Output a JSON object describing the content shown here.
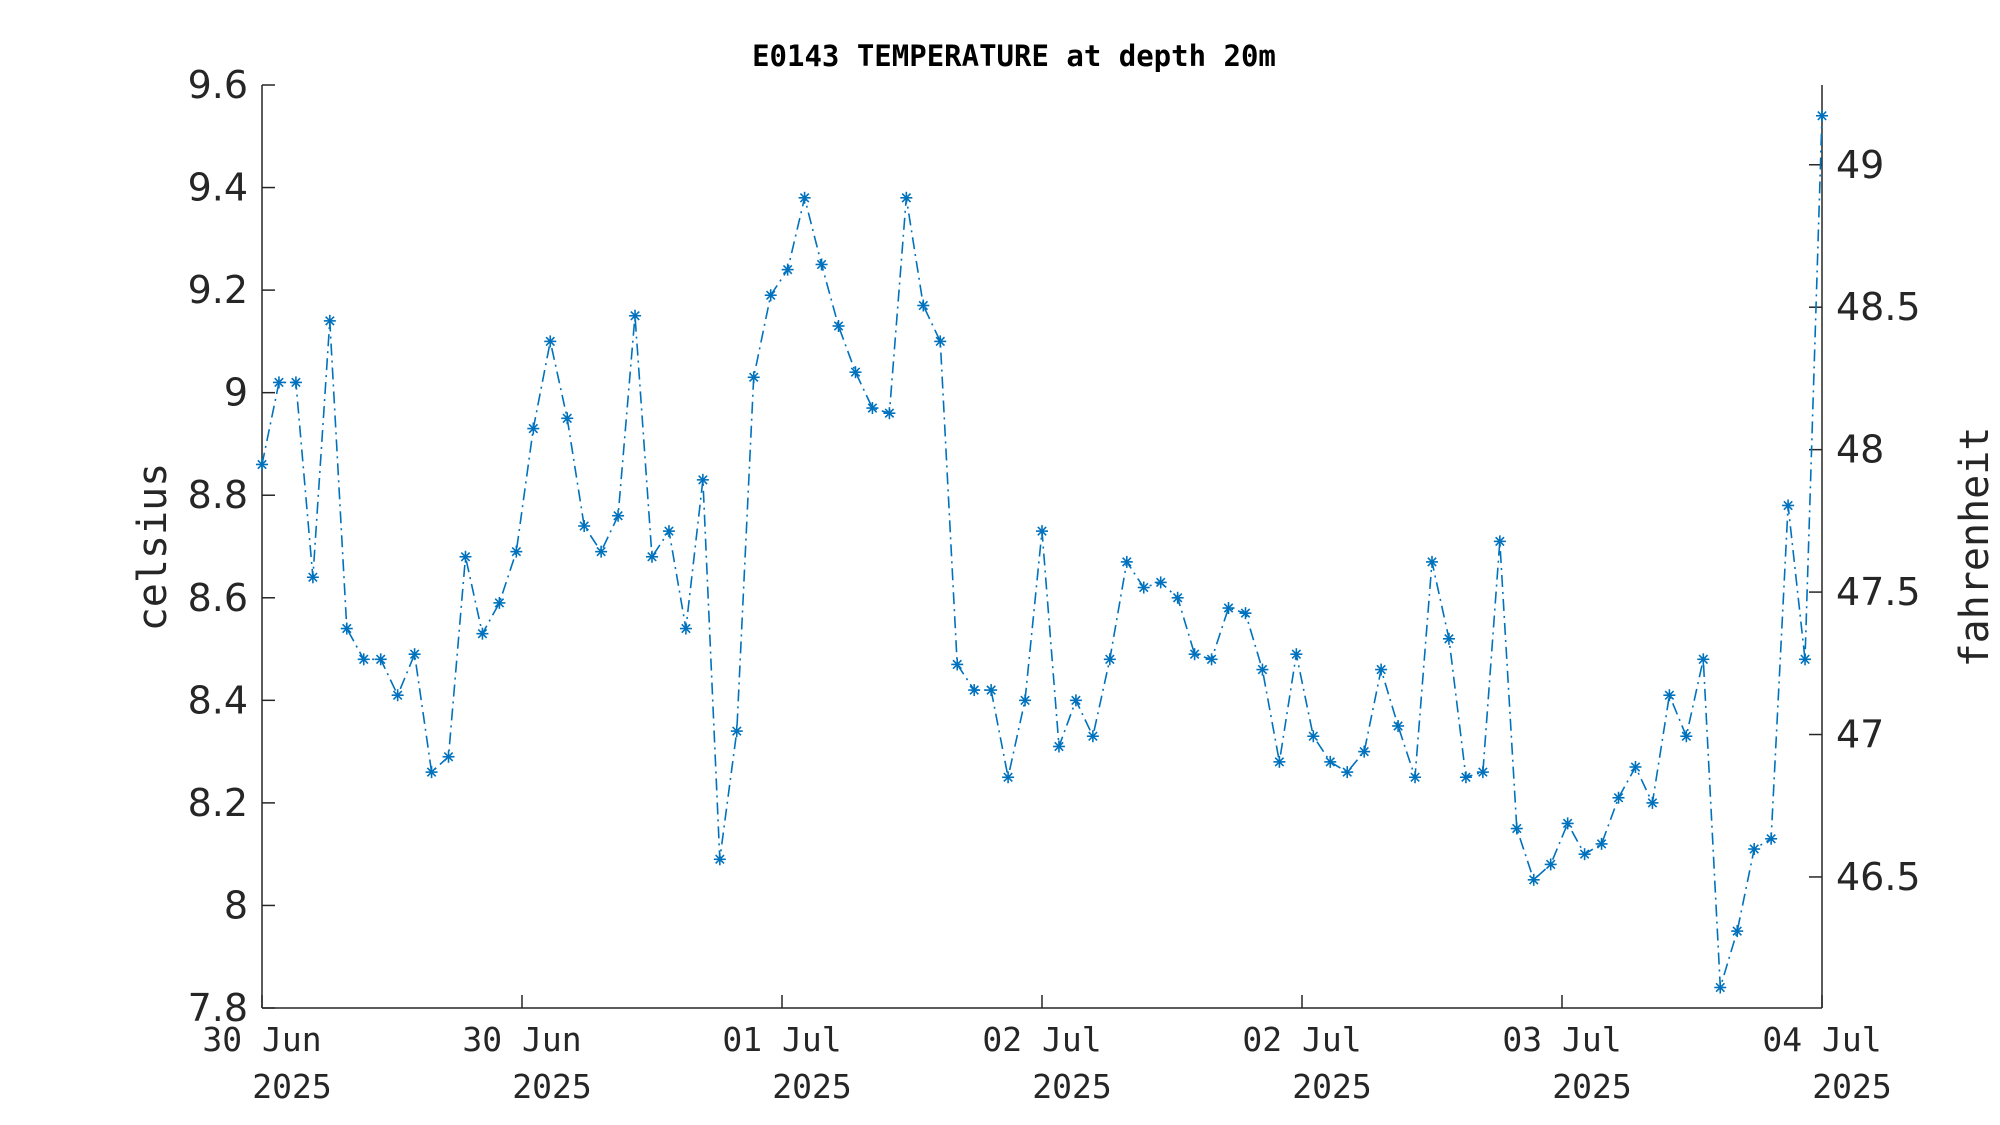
{
  "chart_data": {
    "type": "line",
    "title": "E0143 TEMPERATURE at depth 20m",
    "ylabel": "celsius",
    "y2label": "fahrenheit",
    "ylim": [
      7.8,
      9.6
    ],
    "yticks": [
      "7.8",
      "8",
      "8.2",
      "8.4",
      "8.6",
      "8.8",
      "9",
      "9.2",
      "9.4",
      "9.6"
    ],
    "y2lim": [
      46.04,
      49.28
    ],
    "y2ticks": [
      "46.5",
      "47",
      "47.5",
      "48",
      "48.5",
      "49"
    ],
    "xticks": [
      {
        "day": "30 Jun",
        "year": "2025"
      },
      {
        "day": "30 Jun",
        "year": "2025"
      },
      {
        "day": "01 Jul",
        "year": "2025"
      },
      {
        "day": "02 Jul",
        "year": "2025"
      },
      {
        "day": "02 Jul",
        "year": "2025"
      },
      {
        "day": "03 Jul",
        "year": "2025"
      },
      {
        "day": "04 Jul",
        "year": "2025"
      }
    ],
    "grid": false,
    "color": "#0072BD",
    "line_style": "dash-dot",
    "marker": "asterisk",
    "series": [
      {
        "values": [
          8.86,
          9.02,
          9.02,
          8.64,
          9.14,
          8.54,
          8.48,
          8.48,
          8.41,
          8.49,
          8.26,
          8.29,
          8.68,
          8.53,
          8.59,
          8.69,
          8.93,
          9.1,
          8.95,
          8.74,
          8.69,
          8.76,
          9.15,
          8.68,
          8.73,
          8.54,
          8.83,
          8.09,
          8.34,
          9.03,
          9.19,
          9.24,
          9.38,
          9.25,
          9.13,
          9.04,
          8.97,
          8.96,
          9.38,
          9.17,
          9.1,
          8.47,
          8.42,
          8.42,
          8.25,
          8.4,
          8.73,
          8.31,
          8.4,
          8.33,
          8.48,
          8.67,
          8.62,
          8.63,
          8.6,
          8.49,
          8.48,
          8.58,
          8.57,
          8.46,
          8.28,
          8.49,
          8.33,
          8.28,
          8.26,
          8.3,
          8.46,
          8.35,
          8.25,
          8.67,
          8.52,
          8.25,
          8.26,
          8.71,
          8.15,
          8.05,
          8.08,
          8.16,
          8.1,
          8.12,
          8.21,
          8.27,
          8.2,
          8.41,
          8.33,
          8.48,
          7.84,
          7.95,
          8.11,
          8.13,
          8.78,
          8.48,
          9.54
        ]
      }
    ]
  }
}
